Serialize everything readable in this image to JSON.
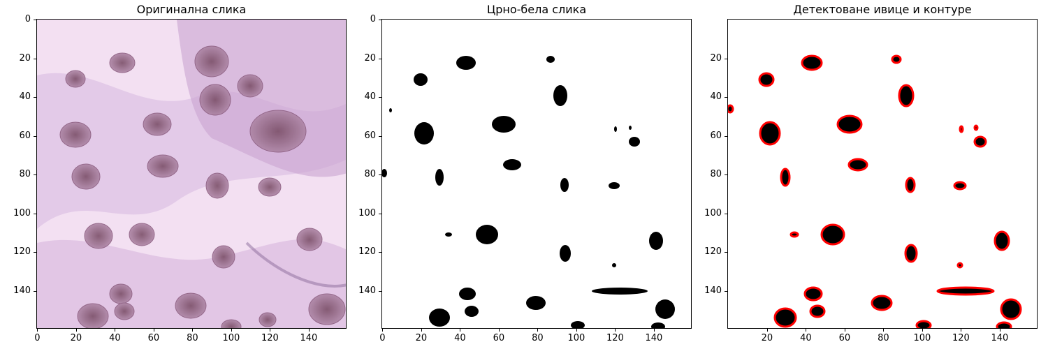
{
  "figure": {
    "panels": [
      {
        "title": "Оригинална слика",
        "x_ticks": [
          "0",
          "20",
          "40",
          "60",
          "80",
          "100",
          "120",
          "140"
        ],
        "y_ticks": [
          "0",
          "20",
          "40",
          "60",
          "80",
          "100",
          "120",
          "140"
        ]
      },
      {
        "title": "Црно-бела слика",
        "x_ticks": [
          "0",
          "20",
          "40",
          "60",
          "80",
          "100",
          "120",
          "140"
        ],
        "y_ticks": [
          "0",
          "20",
          "40",
          "60",
          "80",
          "100",
          "120",
          "140"
        ]
      },
      {
        "title": "Детектоване ивице и контуре",
        "x_ticks": [
          "20",
          "40",
          "60",
          "80",
          "100",
          "120",
          "140"
        ],
        "y_ticks": [
          "20",
          "40",
          "60",
          "80",
          "100",
          "120",
          "140"
        ]
      }
    ],
    "colors": {
      "tissue_background": "#f2dcf0",
      "tissue_stroma": "#d9b3dd",
      "nucleus": "#9b6b8a",
      "mask_foreground": "#000000",
      "contour": "#ff0000"
    }
  }
}
